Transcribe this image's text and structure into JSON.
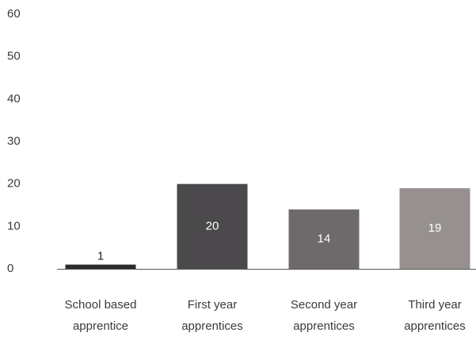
{
  "chart_data": {
    "type": "bar",
    "title": "",
    "xlabel": "",
    "ylabel": "",
    "ylim": [
      0,
      60
    ],
    "yticks": [
      0,
      10,
      20,
      30,
      40,
      50,
      60
    ],
    "grid": false,
    "categories": [
      [
        "School based",
        "apprentice"
      ],
      [
        "First year",
        "apprentices"
      ],
      [
        "Second year",
        "apprentices"
      ],
      [
        "Third year",
        "apprentices"
      ]
    ],
    "values": [
      1,
      20,
      14,
      19
    ],
    "data_labels": [
      "1",
      "20",
      "14",
      "19"
    ],
    "bar_colors": [
      "#2d2c2d",
      "#4b494c",
      "#6e6a6c",
      "#96918f"
    ],
    "data_label_colors": [
      "#222222",
      "#ffffff",
      "#ffffff",
      "#ffffff"
    ],
    "text_color": "#3a3a3a",
    "baseline_color": "#555555"
  }
}
